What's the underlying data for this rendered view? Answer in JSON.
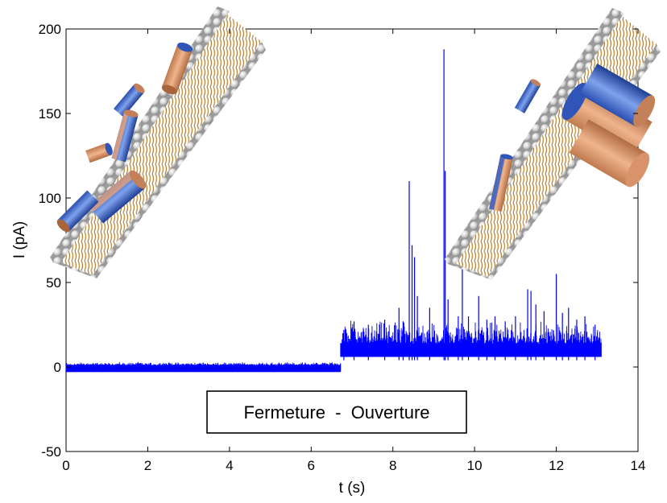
{
  "chart_data": {
    "type": "line",
    "title": "",
    "xlabel": "t (s)",
    "ylabel": "I (pA)",
    "xlim": [
      0,
      14
    ],
    "ylim": [
      -50,
      200
    ],
    "xticks": [
      0,
      2,
      4,
      6,
      8,
      10,
      12,
      14
    ],
    "yticks": [
      -50,
      0,
      50,
      100,
      150,
      200
    ],
    "grid": false,
    "series": [
      {
        "color": "#0000ff",
        "segments": [
          {
            "t_start": 0.0,
            "t_end": 6.72,
            "baseline": 0,
            "noise_band": [
              -3,
              3
            ]
          },
          {
            "t_start": 6.72,
            "t_end": 13.1,
            "baseline": 6,
            "noise_band": [
              0,
              22
            ]
          }
        ],
        "spikes": [
          {
            "t": 6.8,
            "y": 22
          },
          {
            "t": 7.05,
            "y": 27
          },
          {
            "t": 7.4,
            "y": 25
          },
          {
            "t": 7.8,
            "y": 28
          },
          {
            "t": 8.15,
            "y": 35
          },
          {
            "t": 8.25,
            "y": 27
          },
          {
            "t": 8.4,
            "y": 110
          },
          {
            "t": 8.47,
            "y": 72
          },
          {
            "t": 8.53,
            "y": 65
          },
          {
            "t": 8.6,
            "y": 42
          },
          {
            "t": 8.9,
            "y": 35
          },
          {
            "t": 9.25,
            "y": 188
          },
          {
            "t": 9.28,
            "y": 116
          },
          {
            "t": 9.35,
            "y": 40
          },
          {
            "t": 9.6,
            "y": 30
          },
          {
            "t": 9.7,
            "y": 58
          },
          {
            "t": 9.85,
            "y": 30
          },
          {
            "t": 10.1,
            "y": 42
          },
          {
            "t": 10.3,
            "y": 28
          },
          {
            "t": 10.5,
            "y": 30
          },
          {
            "t": 10.75,
            "y": 27
          },
          {
            "t": 11.0,
            "y": 30
          },
          {
            "t": 11.3,
            "y": 46
          },
          {
            "t": 11.38,
            "y": 45
          },
          {
            "t": 11.5,
            "y": 37
          },
          {
            "t": 11.7,
            "y": 33
          },
          {
            "t": 12.0,
            "y": 55
          },
          {
            "t": 12.15,
            "y": 32
          },
          {
            "t": 12.3,
            "y": 35
          },
          {
            "t": 12.5,
            "y": 28
          },
          {
            "t": 12.7,
            "y": 30
          },
          {
            "t": 12.95,
            "y": 25
          }
        ]
      }
    ],
    "legend": {
      "text": "Fermeture  -  Ouverture",
      "position": "bottom-center"
    }
  }
}
